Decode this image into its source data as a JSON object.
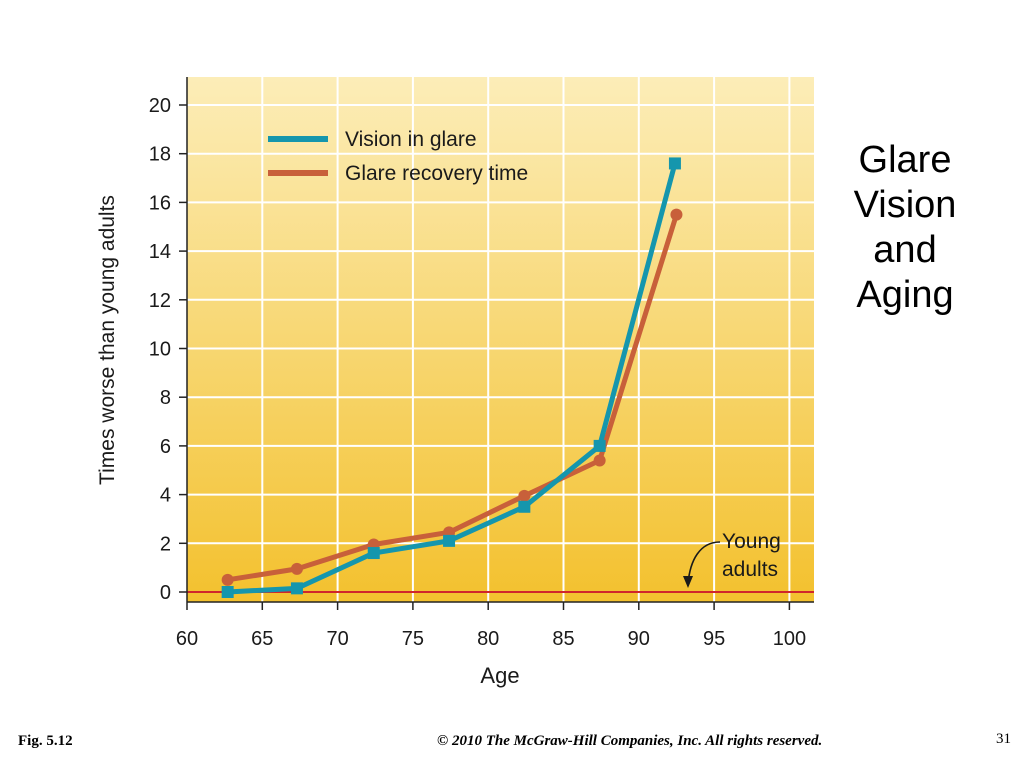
{
  "slide": {
    "title_lines": [
      "Glare",
      "Vision",
      "and",
      "Aging"
    ],
    "figure_label": "Fig. 5.12",
    "copyright": "© 2010 The McGraw-Hill Companies, Inc. All rights reserved.",
    "page_number": "31"
  },
  "colors": {
    "vision_in_glare": "#1596ad",
    "glare_recovery_time": "#c8603a",
    "baseline": "#d0262c",
    "plot_bg_top": "#fcedb8",
    "plot_bg_bottom": "#f3c12e",
    "grid": "#ffffff"
  },
  "chart_data": {
    "type": "line",
    "xlabel": "Age",
    "ylabel": "Times worse than young adults",
    "xlim": [
      60,
      101
    ],
    "ylim": [
      0,
      20
    ],
    "x_ticks": [
      60,
      65,
      70,
      75,
      80,
      85,
      90,
      95,
      100
    ],
    "y_ticks": [
      0,
      2,
      4,
      6,
      8,
      10,
      12,
      14,
      16,
      18,
      20
    ],
    "grid": true,
    "legend_position": "top-left",
    "series": [
      {
        "name": "Vision in glare",
        "marker": "square",
        "x": [
          62.7,
          67.3,
          72.4,
          77.4,
          82.4,
          87.4,
          92.4
        ],
        "y": [
          0.0,
          0.15,
          1.6,
          2.1,
          3.5,
          6.0,
          17.6
        ]
      },
      {
        "name": "Glare recovery time",
        "marker": "circle",
        "x": [
          62.7,
          67.3,
          72.4,
          77.4,
          82.4,
          87.4,
          92.5
        ],
        "y": [
          0.5,
          0.95,
          1.95,
          2.45,
          3.95,
          5.4,
          15.5
        ]
      }
    ],
    "annotations": [
      {
        "text_lines": [
          "Young",
          "adults"
        ],
        "points_to": "baseline y = 0 (young adults)"
      }
    ]
  }
}
